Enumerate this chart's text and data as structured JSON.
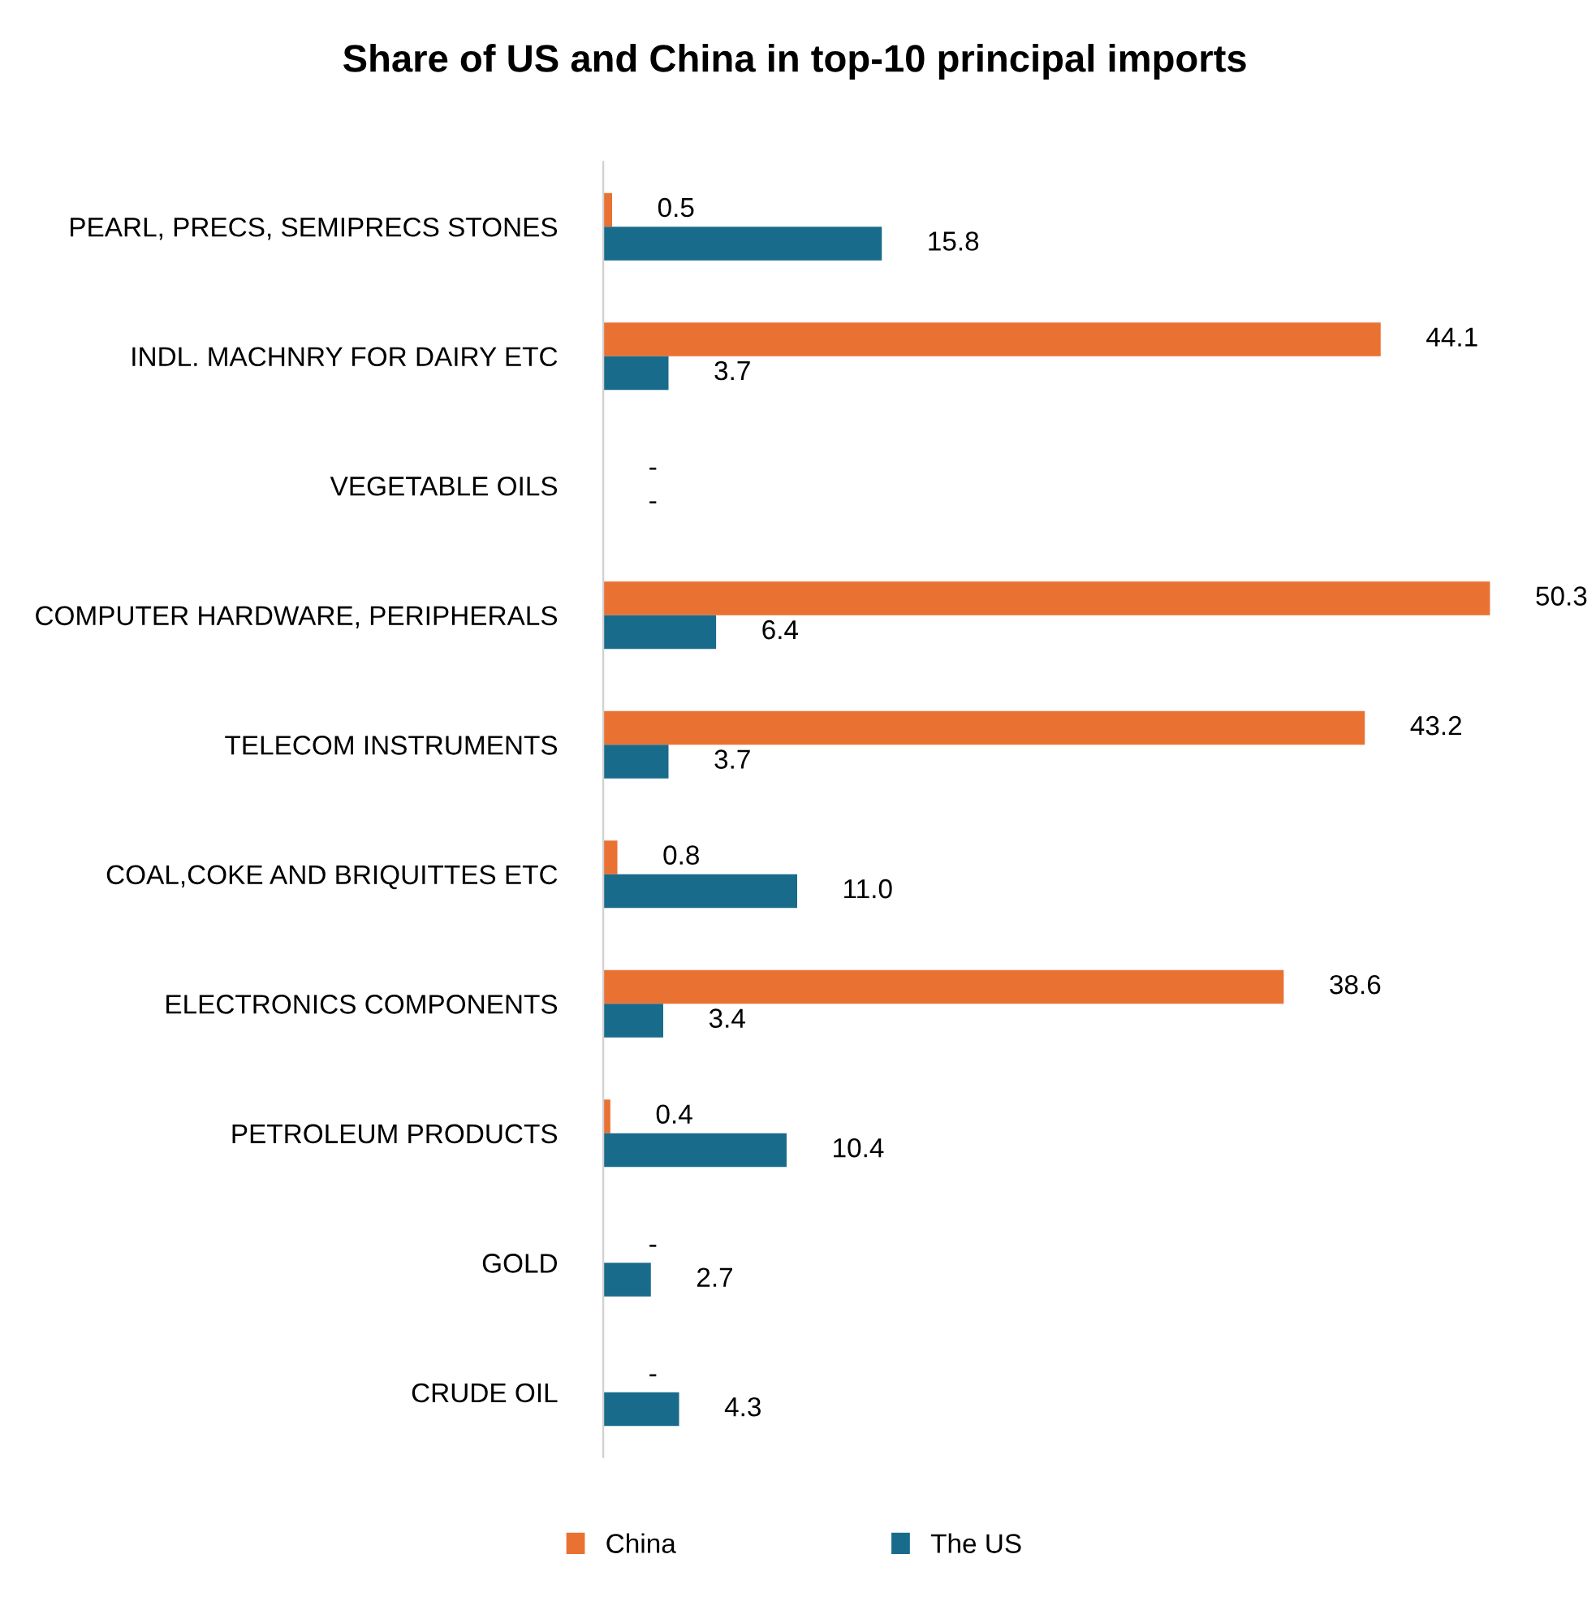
{
  "chart_data": {
    "type": "bar",
    "orientation": "horizontal",
    "title": "Share of US and China in top-10 principal imports",
    "categories": [
      "PEARL, PRECS, SEMIPRECS STONES",
      "INDL. MACHNRY FOR DAIRY ETC",
      "VEGETABLE OILS",
      "COMPUTER HARDWARE, PERIPHERALS",
      "TELECOM INSTRUMENTS",
      "COAL,COKE AND BRIQUITTES ETC",
      "ELECTRONICS COMPONENTS",
      "PETROLEUM PRODUCTS",
      "GOLD",
      "CRUDE OIL"
    ],
    "series": [
      {
        "name": "China",
        "color": "#e97132",
        "values": [
          0.5,
          44.1,
          null,
          50.3,
          43.2,
          0.8,
          38.6,
          0.4,
          null,
          null
        ],
        "value_labels": [
          "0.5",
          "44.1",
          "-",
          "50.3",
          "43.2",
          "0.8",
          "38.6",
          "0.4",
          "-",
          "-"
        ]
      },
      {
        "name": "The US",
        "color": "#196b8c",
        "values": [
          15.8,
          3.7,
          null,
          6.4,
          3.7,
          11.0,
          3.4,
          10.4,
          2.7,
          4.3
        ],
        "value_labels": [
          "15.8",
          "3.7",
          "-",
          "6.4",
          "3.7",
          "11.0",
          "3.4",
          "10.4",
          "2.7",
          "4.3"
        ]
      }
    ],
    "legend": "bottom",
    "grid": false,
    "tick_labels": "y"
  }
}
